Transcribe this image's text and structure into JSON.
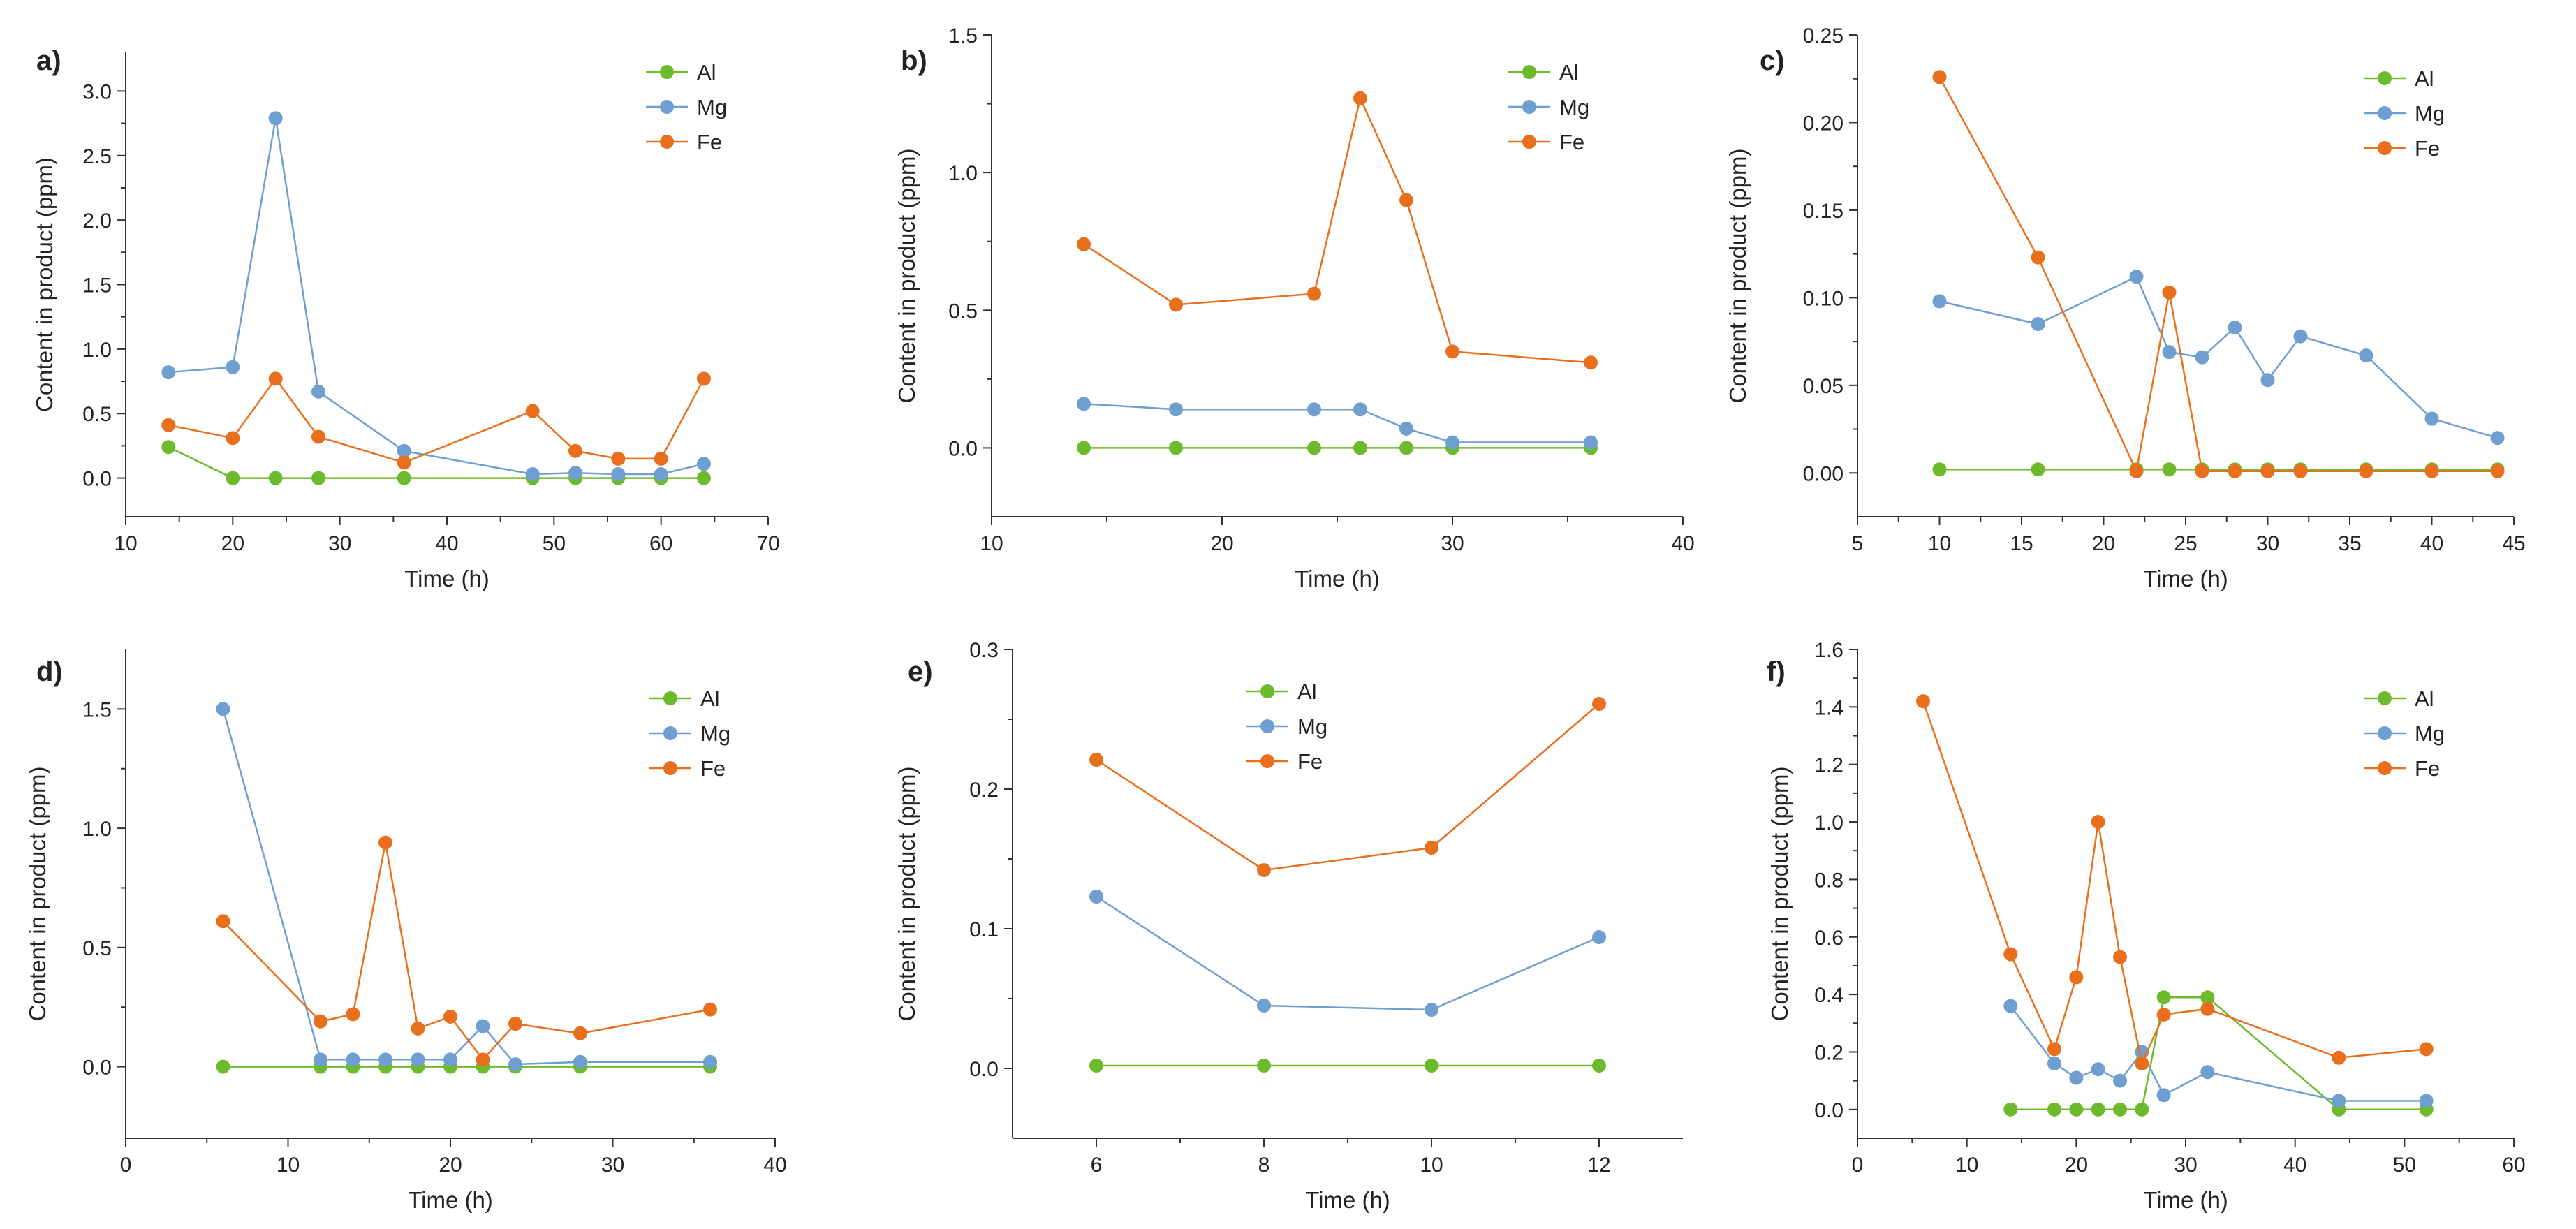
{
  "figure_colors": {
    "Al": "#6dbb2c",
    "Mg": "#6e9fd0",
    "Fe": "#e8701d",
    "axis": "#333333"
  },
  "chart_data": [
    {
      "panel": "a)",
      "type": "line",
      "xlabel": "Time (h)",
      "ylabel": "Content in product (ppm)",
      "xlim": [
        10,
        70
      ],
      "ylim": [
        -0.3,
        3.3
      ],
      "xticks": [
        10,
        20,
        30,
        40,
        50,
        60,
        70
      ],
      "yticks": [
        0.0,
        0.5,
        1.0,
        1.5,
        2.0,
        2.5,
        3.0
      ],
      "legend_position": "top-right",
      "series": [
        {
          "name": "Al",
          "x": [
            14,
            20,
            24,
            28,
            36,
            48,
            52,
            56,
            60,
            64
          ],
          "y": [
            0.24,
            0.0,
            0.0,
            0.0,
            0.0,
            0.0,
            0.0,
            0.0,
            0.0,
            0.0
          ]
        },
        {
          "name": "Mg",
          "x": [
            14,
            20,
            24,
            28,
            36,
            48,
            52,
            56,
            60,
            64
          ],
          "y": [
            0.82,
            0.86,
            2.79,
            0.67,
            0.21,
            0.03,
            0.04,
            0.03,
            0.03,
            0.11
          ]
        },
        {
          "name": "Fe",
          "x": [
            14,
            20,
            24,
            28,
            36,
            48,
            52,
            56,
            60,
            64
          ],
          "y": [
            0.41,
            0.31,
            0.77,
            0.32,
            0.12,
            0.52,
            0.21,
            0.15,
            0.15,
            0.77
          ]
        }
      ]
    },
    {
      "panel": "b)",
      "type": "line",
      "xlabel": "Time (h)",
      "ylabel": "Content in product (ppm)",
      "xlim": [
        10,
        40
      ],
      "ylim": [
        -0.25,
        1.5
      ],
      "xticks": [
        10,
        20,
        30,
        40
      ],
      "yticks": [
        0.0,
        0.5,
        1.0,
        1.5
      ],
      "legend_position": "top-right",
      "series": [
        {
          "name": "Al",
          "x": [
            14,
            18,
            24,
            26,
            28,
            30,
            36
          ],
          "y": [
            0.0,
            0.0,
            0.0,
            0.0,
            0.0,
            0.0,
            0.0
          ]
        },
        {
          "name": "Mg",
          "x": [
            14,
            18,
            24,
            26,
            28,
            30,
            36
          ],
          "y": [
            0.16,
            0.14,
            0.14,
            0.14,
            0.07,
            0.02,
            0.02
          ]
        },
        {
          "name": "Fe",
          "x": [
            14,
            18,
            24,
            26,
            28,
            30,
            36
          ],
          "y": [
            0.74,
            0.52,
            0.56,
            1.27,
            0.9,
            0.35,
            0.31
          ]
        }
      ]
    },
    {
      "panel": "c)",
      "type": "line",
      "xlabel": "Time (h)",
      "ylabel": "Content in product (ppm)",
      "xlim": [
        5,
        45
      ],
      "ylim": [
        -0.025,
        0.25
      ],
      "xticks": [
        5,
        10,
        15,
        20,
        25,
        30,
        35,
        40,
        45
      ],
      "yticks": [
        0.0,
        0.05,
        0.1,
        0.15,
        0.2,
        0.25
      ],
      "legend_position": "top-right",
      "series": [
        {
          "name": "Al",
          "x": [
            10,
            16,
            22,
            24,
            26,
            28,
            30,
            32,
            36,
            40,
            44
          ],
          "y": [
            0.002,
            0.002,
            0.002,
            0.002,
            0.002,
            0.002,
            0.002,
            0.002,
            0.002,
            0.002,
            0.002
          ]
        },
        {
          "name": "Mg",
          "x": [
            10,
            16,
            22,
            24,
            26,
            28,
            30,
            32,
            36,
            40,
            44
          ],
          "y": [
            0.098,
            0.085,
            0.112,
            0.069,
            0.066,
            0.083,
            0.053,
            0.078,
            0.067,
            0.031,
            0.02
          ]
        },
        {
          "name": "Fe",
          "x": [
            10,
            16,
            22,
            24,
            26,
            28,
            30,
            32,
            36,
            40,
            44
          ],
          "y": [
            0.226,
            0.123,
            0.001,
            0.103,
            0.001,
            0.001,
            0.001,
            0.001,
            0.001,
            0.001,
            0.001
          ]
        }
      ]
    },
    {
      "panel": "d)",
      "type": "line",
      "xlabel": "Time (h)",
      "ylabel": "Content in product (ppm)",
      "xlim": [
        0,
        40
      ],
      "ylim": [
        -0.3,
        1.75
      ],
      "xticks": [
        0,
        10,
        20,
        30,
        40
      ],
      "yticks": [
        0.0,
        0.5,
        1.0,
        1.5
      ],
      "legend_position": "top-right",
      "series": [
        {
          "name": "Al",
          "x": [
            6,
            12,
            14,
            16,
            18,
            20,
            22,
            24,
            28,
            36
          ],
          "y": [
            0.0,
            0.0,
            0.0,
            0.0,
            0.0,
            0.0,
            0.0,
            0.0,
            0.0,
            0.0
          ]
        },
        {
          "name": "Mg",
          "x": [
            6,
            12,
            14,
            16,
            18,
            20,
            22,
            24,
            28,
            36
          ],
          "y": [
            1.5,
            0.03,
            0.03,
            0.03,
            0.03,
            0.03,
            0.17,
            0.01,
            0.02,
            0.02
          ]
        },
        {
          "name": "Fe",
          "x": [
            6,
            12,
            14,
            16,
            18,
            20,
            22,
            24,
            28,
            36
          ],
          "y": [
            0.61,
            0.19,
            0.22,
            0.94,
            0.16,
            0.21,
            0.03,
            0.18,
            0.14,
            0.24
          ]
        }
      ]
    },
    {
      "panel": "e)",
      "type": "line",
      "xlabel": "Time (h)",
      "ylabel": "Content in product (ppm)",
      "xlim": [
        5,
        13
      ],
      "ylim": [
        -0.05,
        0.3
      ],
      "xticks": [
        6,
        8,
        10,
        12
      ],
      "yticks": [
        0.0,
        0.1,
        0.2,
        0.3
      ],
      "legend_position": "top-center",
      "series": [
        {
          "name": "Al",
          "x": [
            6,
            8,
            10,
            12
          ],
          "y": [
            0.002,
            0.002,
            0.002,
            0.002
          ]
        },
        {
          "name": "Mg",
          "x": [
            6,
            8,
            10,
            12
          ],
          "y": [
            0.123,
            0.045,
            0.042,
            0.094
          ]
        },
        {
          "name": "Fe",
          "x": [
            6,
            8,
            10,
            12
          ],
          "y": [
            0.221,
            0.142,
            0.158,
            0.261
          ]
        }
      ]
    },
    {
      "panel": "f)",
      "type": "line",
      "xlabel": "Time (h)",
      "ylabel": "Content in product (ppm)",
      "xlim": [
        0,
        60
      ],
      "ylim": [
        -0.1,
        1.6
      ],
      "xticks": [
        0,
        10,
        20,
        30,
        40,
        50,
        60
      ],
      "yticks": [
        0.0,
        0.2,
        0.4,
        0.6,
        0.8,
        1.0,
        1.2,
        1.4,
        1.6
      ],
      "legend_position": "top-right",
      "series": [
        {
          "name": "Al",
          "x": [
            14,
            18,
            20,
            22,
            24,
            26,
            28,
            32,
            44,
            52
          ],
          "y": [
            0.0,
            0.0,
            0.0,
            0.0,
            0.0,
            0.0,
            0.39,
            0.39,
            0.0,
            0.0
          ]
        },
        {
          "name": "Mg",
          "x": [
            14,
            18,
            20,
            22,
            24,
            26,
            28,
            32,
            44,
            52
          ],
          "y": [
            0.36,
            0.16,
            0.11,
            0.14,
            0.1,
            0.2,
            0.05,
            0.13,
            0.03,
            0.03
          ]
        },
        {
          "name": "Fe",
          "x": [
            6,
            14,
            18,
            20,
            22,
            24,
            26,
            28,
            32,
            44,
            52
          ],
          "y": [
            1.42,
            0.54,
            0.21,
            0.46,
            1.0,
            0.53,
            0.16,
            0.33,
            0.35,
            0.18,
            0.21
          ]
        }
      ]
    }
  ]
}
